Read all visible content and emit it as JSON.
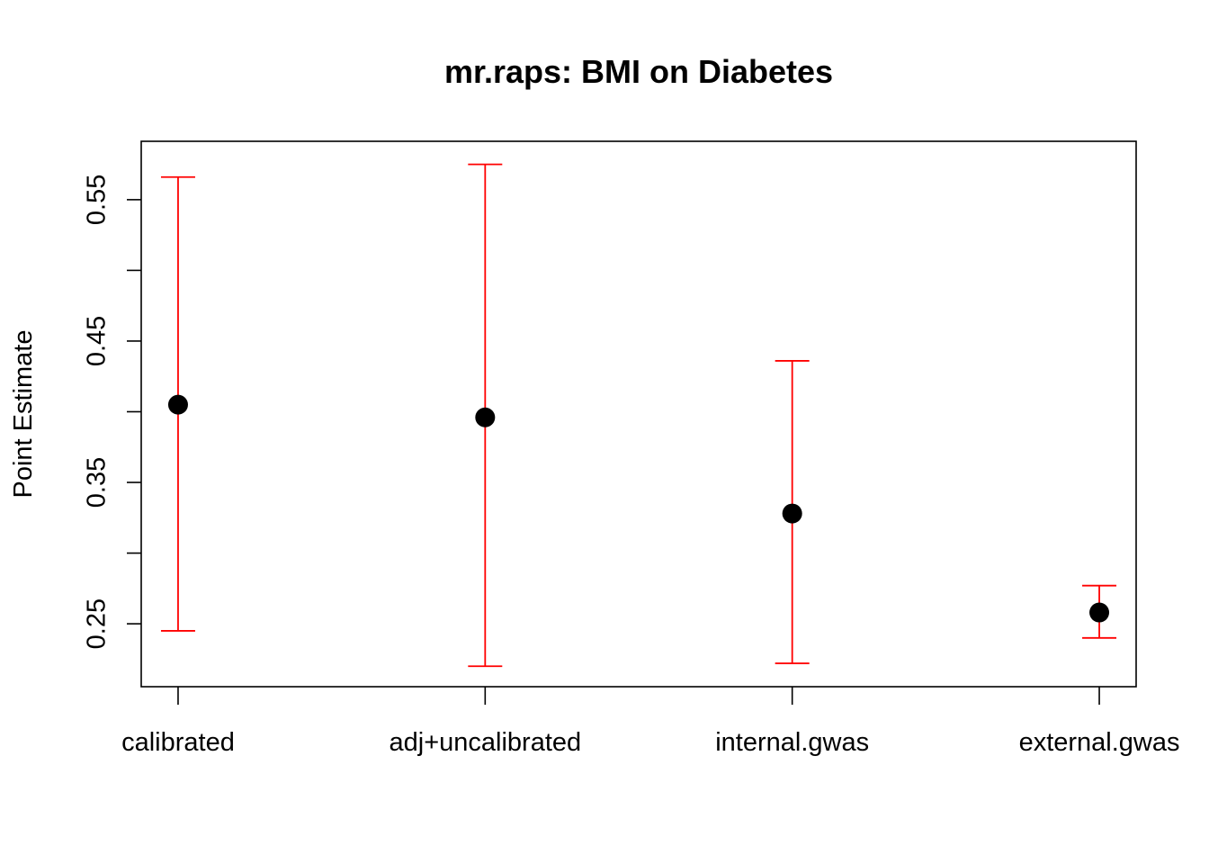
{
  "chart_data": {
    "type": "scatter",
    "title": "mr.raps: BMI on Diabetes",
    "xlabel": "",
    "ylabel": "Point Estimate",
    "categories": [
      "calibrated",
      "adj+uncalibrated",
      "internal.gwas",
      "external.gwas"
    ],
    "estimates": [
      0.405,
      0.396,
      0.328,
      0.258
    ],
    "ci_lower": [
      0.245,
      0.22,
      0.222,
      0.24
    ],
    "ci_upper": [
      0.566,
      0.575,
      0.436,
      0.277
    ],
    "y_ticks": [
      0.25,
      0.3,
      0.35,
      0.4,
      0.45,
      0.5,
      0.55
    ],
    "y_tick_labels": [
      {
        "value": 0.25,
        "label": "0.25"
      },
      {
        "value": 0.35,
        "label": "0.35"
      },
      {
        "value": 0.45,
        "label": "0.45"
      },
      {
        "value": 0.55,
        "label": "0.55"
      }
    ],
    "ylim": [
      0.2055,
      0.5913
    ],
    "grid": false,
    "colors": {
      "point": "#000000",
      "error_bar": "#ff0000",
      "axis": "#000000"
    }
  }
}
